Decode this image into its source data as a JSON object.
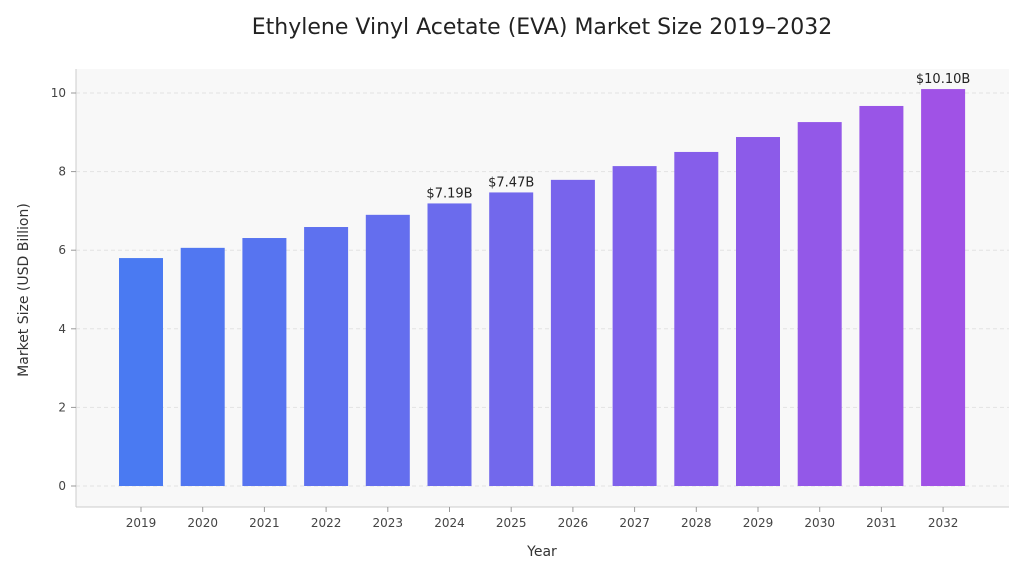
{
  "chart_data": {
    "type": "bar",
    "title": "Ethylene Vinyl Acetate (EVA) Market Size 2019–2032",
    "xlabel": "Year",
    "ylabel": "Market Size (USD Billion)",
    "categories": [
      "2019",
      "2020",
      "2021",
      "2022",
      "2023",
      "2024",
      "2025",
      "2026",
      "2027",
      "2028",
      "2029",
      "2030",
      "2031",
      "2032"
    ],
    "values": [
      5.8,
      6.06,
      6.31,
      6.59,
      6.9,
      7.19,
      7.47,
      7.79,
      8.14,
      8.5,
      8.88,
      9.26,
      9.67,
      10.1
    ],
    "data_labels": {
      "2024": "$7.19B",
      "2025": "$7.47B",
      "2032": "$10.10B"
    },
    "ylim": [
      -0.55,
      10.6
    ],
    "yticks": [
      0,
      2,
      4,
      6,
      8,
      10
    ],
    "grid": true,
    "colors": {
      "start": "#4a7af2",
      "end": "#a052e6",
      "plot_bg": "#f8f8f8",
      "grid": "#e2e2e2"
    }
  }
}
